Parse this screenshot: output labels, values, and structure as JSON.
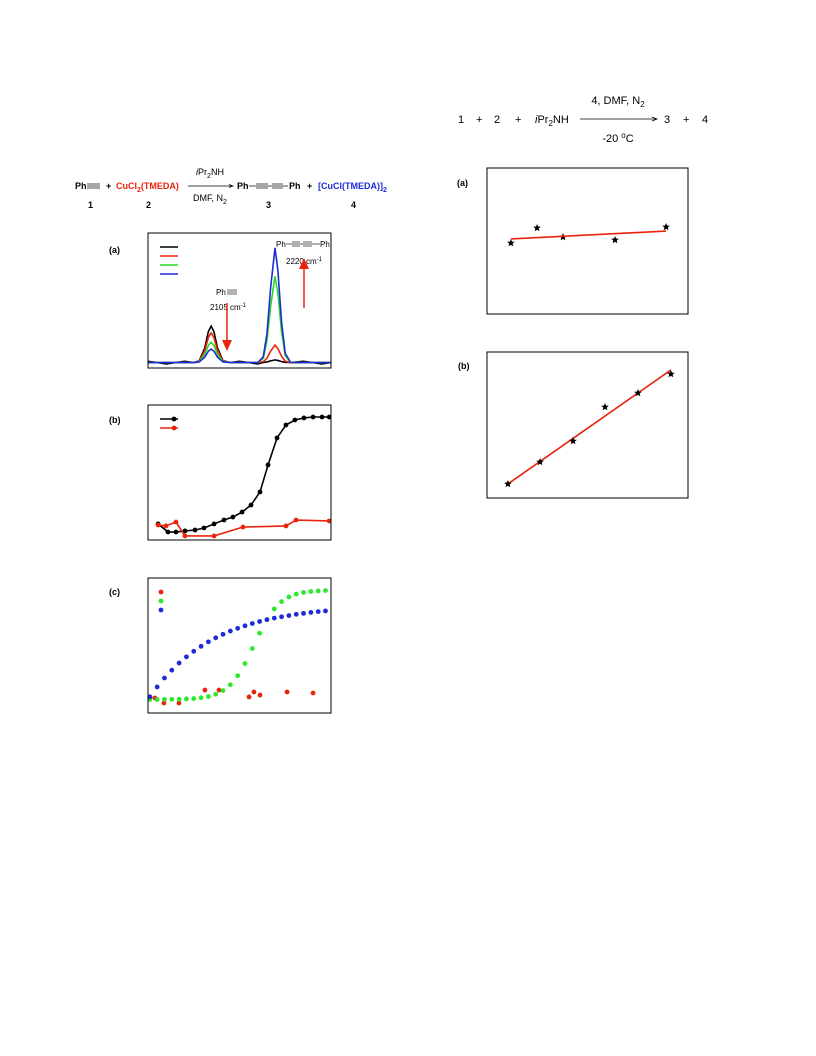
{
  "scheme_top": {
    "r1": "1",
    "p1": "+",
    "r2": "2",
    "p2": "+",
    "reagent": [
      "i",
      "Pr",
      "2",
      "NH"
    ],
    "above": [
      "4, DMF, N",
      "2"
    ],
    "below": [
      "-20 ",
      "o",
      "C"
    ],
    "prod1": "3",
    "p3": "+",
    "prod2": "4"
  },
  "scheme_left": {
    "ph1": "Ph",
    "plus1": "+",
    "cu": [
      "CuCl",
      "2",
      "(TMEDA)"
    ],
    "above": [
      "i",
      "Pr",
      "2",
      "NH"
    ],
    "below": [
      "DMF, N",
      "2"
    ],
    "ph2": "Ph",
    "ph3": "Ph",
    "plus2": "+",
    "cu2": [
      "[CuCl(TMEDA)]",
      "2"
    ],
    "numbers": [
      "1",
      "2",
      "3",
      "4"
    ]
  },
  "chart_data": [
    {
      "type": "line",
      "label": "(a)",
      "xlim": [
        0,
        100
      ],
      "ylim": [
        0,
        100
      ],
      "legend": true,
      "annotations": [
        "Ph",
        "2105 cm",
        "-1",
        "Ph",
        "Ph",
        "2220 cm",
        "-1"
      ],
      "series": [
        {
          "color": "#000000",
          "line": true,
          "x": [
            0,
            10,
            20,
            25,
            28,
            31,
            33,
            34.5,
            36,
            38,
            41,
            45,
            50,
            55,
            60,
            63,
            65,
            67,
            69.4,
            71,
            73,
            75,
            78,
            85,
            95,
            100
          ],
          "values": [
            5,
            3,
            5,
            4,
            5.4,
            14.8,
            27,
            31,
            27,
            14.8,
            5.4,
            4,
            5,
            4,
            3,
            4.1,
            4.5,
            5.3,
            6,
            5.6,
            4.7,
            4.2,
            4,
            5,
            3,
            4
          ]
        },
        {
          "color": "#e8240c",
          "line": true,
          "x": [
            0,
            10,
            20,
            25,
            28,
            31,
            33,
            34.5,
            36,
            38,
            41,
            45,
            50,
            55,
            60,
            63,
            65,
            67,
            69.4,
            71,
            73,
            75,
            78,
            85,
            95,
            100
          ],
          "values": [
            4,
            4,
            4,
            4,
            5.1,
            12.8,
            22.7,
            26,
            22.7,
            12.8,
            5.1,
            4,
            4,
            4,
            4,
            4.7,
            7.3,
            12.5,
            17,
            14.4,
            8.6,
            5,
            4,
            4,
            4,
            4
          ]
        },
        {
          "color": "#2ad82a",
          "line": true,
          "x": [
            0,
            10,
            20,
            25,
            28,
            31,
            33,
            34.5,
            36,
            38,
            41,
            45,
            50,
            55,
            60,
            63,
            65,
            67,
            69.4,
            71,
            73,
            75,
            78,
            85,
            95,
            100
          ],
          "values": [
            4,
            4,
            4,
            4,
            4.8,
            10,
            16.8,
            19,
            16.8,
            10,
            4.8,
            4,
            4,
            4,
            4,
            7.2,
            20,
            45.6,
            68,
            55.2,
            26.4,
            9.1,
            4,
            4,
            4,
            4
          ]
        },
        {
          "color": "#1f2bd6",
          "line": true,
          "x": [
            0,
            10,
            20,
            25,
            28,
            31,
            33,
            34.5,
            36,
            38,
            41,
            45,
            50,
            55,
            60,
            63,
            65,
            67,
            69.4,
            71,
            73,
            75,
            78,
            85,
            95,
            100
          ],
          "values": [
            4,
            4,
            4,
            4,
            4.5,
            8,
            12.5,
            14,
            12.5,
            8,
            4.5,
            4,
            4,
            4,
            4,
            8.3,
            25.3,
            59.3,
            89,
            72,
            33.8,
            10.8,
            4,
            4,
            4,
            4
          ]
        }
      ]
    },
    {
      "type": "line",
      "label": "(b)",
      "xlim": [
        0,
        100
      ],
      "ylim": [
        0,
        100
      ],
      "legend": true,
      "series": [
        {
          "color": "#000000",
          "line": true,
          "marker": "circle",
          "x": [
            5.5,
            10.9,
            15.3,
            20.2,
            25.7,
            30.6,
            36.1,
            41.5,
            46.4,
            51.4,
            56.3,
            61.2,
            65.6,
            70.5,
            75.4,
            80.3,
            85.2,
            90.2,
            95.1,
            99
          ],
          "values": [
            11.9,
            5.9,
            5.9,
            6.7,
            7.4,
            8.9,
            11.9,
            14.8,
            17,
            20.7,
            25.9,
            35.6,
            55.6,
            75.6,
            85.2,
            88.9,
            90.4,
            91.1,
            91.1,
            91.1
          ]
        },
        {
          "color": "#e8240c",
          "line": true,
          "marker": "circle",
          "x": [
            5.5,
            9.8,
            15.3,
            20.2,
            36.1,
            51.9,
            75.4,
            80.9,
            99
          ],
          "values": [
            11.1,
            10.4,
            13.3,
            3,
            3,
            9.6,
            10.4,
            14.8,
            14.1
          ]
        }
      ]
    },
    {
      "type": "scatter",
      "label": "(c)",
      "xlim": [
        0,
        100
      ],
      "ylim": [
        0,
        100
      ],
      "legend": true,
      "series": [
        {
          "color": "#e8240c",
          "marker": "circle",
          "x": [
            1.1,
            3.8,
            8.7,
            16.9,
            31.1,
            38.8,
            55.2,
            57.9,
            61.2,
            76,
            90.2
          ],
          "values": [
            11.9,
            11.1,
            7.4,
            7.4,
            17,
            17,
            11.9,
            15.6,
            13.3,
            15.6,
            14.8
          ]
        },
        {
          "color": "#2ee82e",
          "marker": "circle",
          "x": [
            1,
            5,
            9,
            13,
            17,
            21,
            25,
            29,
            33,
            37,
            41,
            45,
            49,
            53,
            57,
            61,
            65,
            69,
            73,
            77,
            81,
            85,
            89,
            93,
            97
          ],
          "values": [
            10,
            10,
            10.1,
            10.1,
            10.2,
            10.4,
            10.7,
            11.3,
            12.2,
            13.9,
            16.6,
            20.9,
            27.6,
            36.6,
            47.7,
            59.1,
            69.2,
            77.1,
            82.5,
            86,
            88.1,
            89.3,
            90,
            90.4,
            90.7
          ]
        },
        {
          "color": "#1f2bd6",
          "marker": "circle",
          "x": [
            1,
            5,
            9,
            13,
            17,
            21,
            25,
            29,
            33,
            37,
            41,
            45,
            49,
            53,
            57,
            61,
            65,
            69,
            73,
            77,
            81,
            85,
            89,
            93,
            97
          ],
          "values": [
            12,
            19.3,
            25.9,
            31.7,
            37,
            41.6,
            45.7,
            49.4,
            52.7,
            55.7,
            58.3,
            60.7,
            62.7,
            64.6,
            66.3,
            67.8,
            69.1,
            70.3,
            71.3,
            72.2,
            73.1,
            73.8,
            74.5,
            75.1,
            75.6
          ]
        }
      ]
    },
    {
      "type": "scatter",
      "label": "(a)",
      "xlim": [
        0,
        100
      ],
      "ylim": [
        0,
        100
      ],
      "series": [
        {
          "color": "#000000",
          "marker": "star",
          "x": [
            11.9,
            24.9,
            37.8,
            63.7,
            89.1
          ],
          "values": [
            48.6,
            58.9,
            52.7,
            50.7,
            59.6
          ]
        },
        {
          "color": "#e8240c",
          "line": true,
          "x": [
            11.9,
            89.1
          ],
          "values": [
            51.4,
            56.8
          ]
        }
      ]
    },
    {
      "type": "scatter",
      "label": "(b)",
      "xlim": [
        0,
        100
      ],
      "ylim": [
        0,
        100
      ],
      "series": [
        {
          "color": "#e8240c",
          "line": true,
          "x": [
            10.4,
            91.5
          ],
          "values": [
            9.6,
            87.7
          ]
        },
        {
          "color": "#000000",
          "marker": "star",
          "x": [
            10.4,
            26.4,
            42.8,
            58.7,
            75.1,
            91.5
          ],
          "values": [
            9.6,
            24.7,
            39,
            62.3,
            71.9,
            84.9
          ]
        }
      ]
    }
  ]
}
